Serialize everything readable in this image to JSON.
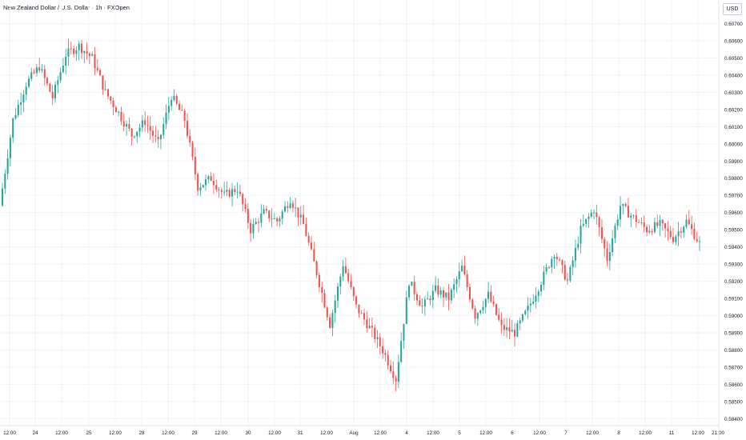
{
  "header": {
    "title": "New Zealand Dollar / U.S. Dollar · 1h · FXOpen",
    "currency": "USD"
  },
  "colors": {
    "up": "#26a69a",
    "down": "#ef5350",
    "grid": "#f0f3fa",
    "axis_text": "#131722",
    "border": "#e0e3eb"
  },
  "chart_data": {
    "type": "candlestick",
    "title": "New Zealand Dollar / U.S. Dollar · 1h · FXOpen",
    "ylabel": "USD",
    "ylim": [
      0.5835,
      0.6078
    ],
    "y_ticks": [
      "0.60700",
      "0.60600",
      "0.60500",
      "0.60400",
      "0.60300",
      "0.60200",
      "0.60100",
      "0.60000",
      "0.59900",
      "0.59800",
      "0.59700",
      "0.59600",
      "0.59500",
      "0.59400",
      "0.59300",
      "0.59200",
      "0.59100",
      "0.59000",
      "0.58900",
      "0.58800",
      "0.58700",
      "0.58600",
      "0.58500",
      "0.58400"
    ],
    "x_ticks": [
      "12:00",
      "24",
      "12:00",
      "25",
      "12:00",
      "28",
      "12:00",
      "29",
      "12:00",
      "30",
      "12:00",
      "31",
      "12:00",
      "Aug",
      "12:00",
      "4",
      "12:00",
      "5",
      "12:00",
      "6",
      "12:00",
      "7",
      "12:00",
      "8",
      "12:00",
      "11",
      "12:00",
      "21:00"
    ],
    "grid": true,
    "ohlc_close_path": [
      [
        0.5964,
        0.6014
      ],
      [
        0.6014,
        0.6035
      ],
      [
        0.6035,
        0.6045
      ],
      [
        0.6045,
        0.6027
      ],
      [
        0.6027,
        0.6052
      ],
      [
        0.6052,
        0.6057
      ],
      [
        0.6057,
        0.605
      ],
      [
        0.605,
        0.603
      ],
      [
        0.603,
        0.6018
      ],
      [
        0.6018,
        0.6005
      ],
      [
        0.6005,
        0.6013
      ],
      [
        0.6013,
        0.6
      ],
      [
        0.6,
        0.6028
      ],
      [
        0.6028,
        0.6014
      ],
      [
        0.6014,
        0.5975
      ],
      [
        0.5975,
        0.598
      ],
      [
        0.598,
        0.597
      ],
      [
        0.597,
        0.5974
      ],
      [
        0.5974,
        0.595
      ],
      [
        0.595,
        0.596
      ],
      [
        0.596,
        0.5955
      ],
      [
        0.5955,
        0.5968
      ],
      [
        0.5968,
        0.5953
      ],
      [
        0.5953,
        0.5925
      ],
      [
        0.5925,
        0.5895
      ],
      [
        0.5895,
        0.593
      ],
      [
        0.593,
        0.5905
      ],
      [
        0.5905,
        0.5893
      ],
      [
        0.5893,
        0.588
      ],
      [
        0.588,
        0.5863
      ],
      [
        0.5863,
        0.592
      ],
      [
        0.592,
        0.5905
      ],
      [
        0.5905,
        0.5915
      ],
      [
        0.5915,
        0.591
      ],
      [
        0.591,
        0.5928
      ],
      [
        0.5928,
        0.59
      ],
      [
        0.59,
        0.5912
      ],
      [
        0.5912,
        0.5893
      ],
      [
        0.5893,
        0.589
      ],
      [
        0.589,
        0.5904
      ],
      [
        0.5904,
        0.592
      ],
      [
        0.592,
        0.5937
      ],
      [
        0.5937,
        0.592
      ],
      [
        0.592,
        0.595
      ],
      [
        0.595,
        0.5962
      ],
      [
        0.5962,
        0.5933
      ],
      [
        0.5933,
        0.5964
      ],
      [
        0.5964,
        0.5957
      ],
      [
        0.5957,
        0.595
      ],
      [
        0.595,
        0.5953
      ],
      [
        0.5953,
        0.5945
      ],
      [
        0.5945,
        0.5955
      ],
      [
        0.5955,
        0.5942
      ]
    ],
    "ohlc_candles_per_segment": 5,
    "ohlc_noise": 0.00055
  }
}
